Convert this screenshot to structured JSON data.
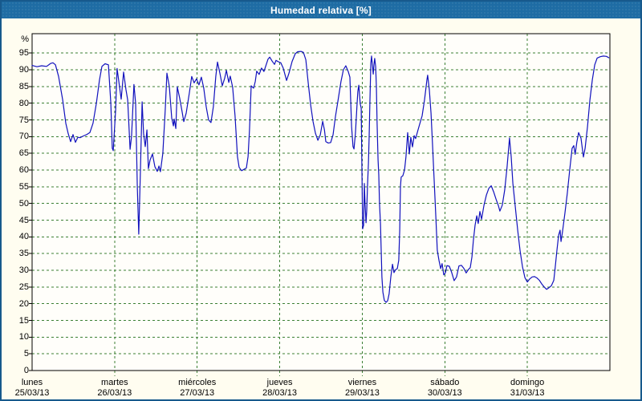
{
  "window": {
    "title": "Humedad relativa [%]"
  },
  "colors": {
    "titlebar": "#1e6ca4",
    "window_border": "#17598c",
    "background": "#fffdf0",
    "plot_background": "#fffefa",
    "grid": "#3c8034",
    "frame": "#000000",
    "line": "#1111bd",
    "title_text": "#ffffff",
    "label_text": "#000000"
  },
  "chart_data": {
    "type": "line",
    "title": "Humedad relativa [%]",
    "ylabel": "%",
    "y_unit_label": "%",
    "ylim": [
      0,
      100.8
    ],
    "y_ticks": [
      0,
      5,
      10,
      15,
      20,
      25,
      30,
      35,
      40,
      45,
      50,
      55,
      60,
      65,
      70,
      75,
      80,
      85,
      90,
      95
    ],
    "x_range_hours": [
      0,
      168
    ],
    "grid": "dashed",
    "legend": "none",
    "x_day_labels": [
      {
        "day": "lunes",
        "date": "25/03/13"
      },
      {
        "day": "martes",
        "date": "26/03/13"
      },
      {
        "day": "miércoles",
        "date": "27/03/13"
      },
      {
        "day": "jueves",
        "date": "28/03/13"
      },
      {
        "day": "viernes",
        "date": "29/03/13"
      },
      {
        "day": "sábado",
        "date": "30/03/13"
      },
      {
        "day": "domingo",
        "date": "31/03/13"
      }
    ],
    "series": [
      {
        "name": "Humedad relativa",
        "color": "#1111bd",
        "points": [
          [
            0,
            91.3
          ],
          [
            1.4,
            90.9
          ],
          [
            2.8,
            91.2
          ],
          [
            4.2,
            91.0
          ],
          [
            5.4,
            91.9
          ],
          [
            6.1,
            92.1
          ],
          [
            6.8,
            91.5
          ],
          [
            7.7,
            88
          ],
          [
            8.9,
            81
          ],
          [
            9.8,
            74
          ],
          [
            10.5,
            70.9
          ],
          [
            11.2,
            68.5
          ],
          [
            11.9,
            70.6
          ],
          [
            12.6,
            68.3
          ],
          [
            13.3,
            69.8
          ],
          [
            14,
            69.7
          ],
          [
            14.9,
            70.2
          ],
          [
            15.9,
            70.6
          ],
          [
            16.8,
            71.2
          ],
          [
            17.7,
            74
          ],
          [
            18.7,
            80
          ],
          [
            19.6,
            87
          ],
          [
            20.3,
            91
          ],
          [
            21.2,
            91.8
          ],
          [
            22.2,
            91.5
          ],
          [
            22.9,
            80
          ],
          [
            23.3,
            66.5
          ],
          [
            23.6,
            65.8
          ],
          [
            24.3,
            78
          ],
          [
            24.7,
            90.4
          ],
          [
            25.4,
            85
          ],
          [
            25.9,
            81.2
          ],
          [
            26.6,
            89.3
          ],
          [
            27.3,
            84
          ],
          [
            27.8,
            81
          ],
          [
            28.5,
            66.2
          ],
          [
            28.9,
            70
          ],
          [
            29.6,
            85.6
          ],
          [
            30.1,
            80
          ],
          [
            30.6,
            55
          ],
          [
            31.0,
            40.8
          ],
          [
            31.5,
            60
          ],
          [
            32.0,
            80.4
          ],
          [
            32.4,
            71
          ],
          [
            32.9,
            67
          ],
          [
            33.4,
            72
          ],
          [
            33.8,
            60.4
          ],
          [
            34.3,
            63
          ],
          [
            35,
            64.8
          ],
          [
            35.7,
            61
          ],
          [
            36.4,
            59.6
          ],
          [
            36.9,
            61.2
          ],
          [
            37.3,
            59.5
          ],
          [
            38,
            65
          ],
          [
            38.7,
            78
          ],
          [
            39.2,
            89
          ],
          [
            39.9,
            85
          ],
          [
            40.6,
            75.5
          ],
          [
            41.1,
            73.2
          ],
          [
            41.3,
            75.3
          ],
          [
            41.8,
            72.4
          ],
          [
            42.2,
            84.9
          ],
          [
            42.9,
            81.5
          ],
          [
            43.6,
            77.5
          ],
          [
            44.1,
            74.5
          ],
          [
            44.8,
            77
          ],
          [
            45.7,
            83
          ],
          [
            46.4,
            88
          ],
          [
            47.1,
            86.1
          ],
          [
            47.8,
            87.3
          ],
          [
            48.5,
            85.5
          ],
          [
            49.2,
            87.8
          ],
          [
            49.9,
            84.5
          ],
          [
            50.6,
            79
          ],
          [
            51.3,
            75
          ],
          [
            52.0,
            74.2
          ],
          [
            52.7,
            79
          ],
          [
            53.4,
            88
          ],
          [
            53.9,
            92.3
          ],
          [
            54.6,
            89
          ],
          [
            55.3,
            85.2
          ],
          [
            56,
            87.5
          ],
          [
            56.5,
            89.8
          ],
          [
            57.2,
            86.2
          ],
          [
            57.6,
            88.1
          ],
          [
            58.3,
            84.8
          ],
          [
            59.0,
            76.2
          ],
          [
            59.7,
            64
          ],
          [
            60.2,
            60.8
          ],
          [
            60.9,
            59.8
          ],
          [
            61.6,
            60.2
          ],
          [
            62.3,
            60.6
          ],
          [
            62.8,
            64
          ],
          [
            63.2,
            72
          ],
          [
            63.7,
            85.2
          ],
          [
            64.4,
            84.5
          ],
          [
            64.9,
            86.5
          ],
          [
            65.3,
            89.6
          ],
          [
            66.0,
            88.6
          ],
          [
            66.7,
            90.5
          ],
          [
            67.4,
            89.5
          ],
          [
            67.9,
            91
          ],
          [
            68.6,
            93.2
          ],
          [
            69.1,
            93.8
          ],
          [
            69.8,
            92.6
          ],
          [
            70.5,
            91.6
          ],
          [
            70.9,
            92.8
          ],
          [
            71.6,
            92.4
          ],
          [
            72.3,
            92.1
          ],
          [
            73.0,
            90.5
          ],
          [
            74.0,
            86.8
          ],
          [
            74.7,
            89
          ],
          [
            75.6,
            92.5
          ],
          [
            76.5,
            94.8
          ],
          [
            77.2,
            95.4
          ],
          [
            78.2,
            95.5
          ],
          [
            78.9,
            95.2
          ],
          [
            79.6,
            93
          ],
          [
            80.3,
            86
          ],
          [
            81.0,
            79.5
          ],
          [
            81.7,
            74.5
          ],
          [
            82.4,
            71
          ],
          [
            83.1,
            68.9
          ],
          [
            83.8,
            70.5
          ],
          [
            84.5,
            74.6
          ],
          [
            85.0,
            72
          ],
          [
            85.4,
            68.5
          ],
          [
            86.1,
            68.1
          ],
          [
            86.8,
            68.2
          ],
          [
            87.5,
            70.5
          ],
          [
            88.2,
            76
          ],
          [
            88.9,
            80.5
          ],
          [
            89.8,
            86.5
          ],
          [
            90.5,
            90
          ],
          [
            91.2,
            91.2
          ],
          [
            91.9,
            89.5
          ],
          [
            92.4,
            87.8
          ],
          [
            92.9,
            73
          ],
          [
            93.3,
            67
          ],
          [
            93.6,
            66.3
          ],
          [
            94.0,
            71
          ],
          [
            94.5,
            80
          ],
          [
            94.7,
            83.5
          ],
          [
            95.0,
            85.4
          ],
          [
            95.2,
            82.5
          ],
          [
            95.4,
            79.8
          ],
          [
            95.7,
            78.5
          ],
          [
            95.9,
            60
          ],
          [
            96.1,
            42.4
          ],
          [
            96.4,
            43.5
          ],
          [
            96.6,
            56
          ],
          [
            96.8,
            50
          ],
          [
            97.1,
            44.2
          ],
          [
            97.3,
            48
          ],
          [
            97.5,
            55
          ],
          [
            97.8,
            62
          ],
          [
            98.0,
            70
          ],
          [
            98.2,
            80
          ],
          [
            98.5,
            92
          ],
          [
            98.7,
            94.1
          ],
          [
            99.2,
            88.7
          ],
          [
            99.4,
            91.5
          ],
          [
            99.6,
            93.4
          ],
          [
            99.9,
            91
          ],
          [
            100.1,
            85
          ],
          [
            100.3,
            74
          ],
          [
            100.6,
            63
          ],
          [
            100.8,
            58.5
          ],
          [
            101.0,
            50
          ],
          [
            101.3,
            44
          ],
          [
            101.5,
            36
          ],
          [
            101.7,
            28
          ],
          [
            102.0,
            23.5
          ],
          [
            102.4,
            21
          ],
          [
            102.9,
            20.4
          ],
          [
            103.4,
            20.9
          ],
          [
            103.8,
            23
          ],
          [
            104.3,
            28
          ],
          [
            104.8,
            31.8
          ],
          [
            105.2,
            29.3
          ],
          [
            105.7,
            30.2
          ],
          [
            106.2,
            30.5
          ],
          [
            106.6,
            33
          ],
          [
            106.9,
            42
          ],
          [
            107.1,
            55
          ],
          [
            107.3,
            57.9
          ],
          [
            107.8,
            58.3
          ],
          [
            108.3,
            60
          ],
          [
            108.7,
            64
          ],
          [
            109.2,
            71.2
          ],
          [
            109.7,
            64.8
          ],
          [
            110.1,
            69.8
          ],
          [
            110.6,
            66.9
          ],
          [
            111.1,
            70.3
          ],
          [
            111.5,
            69.4
          ],
          [
            112.2,
            72
          ],
          [
            112.9,
            74.5
          ],
          [
            113.4,
            76.2
          ],
          [
            114.1,
            81
          ],
          [
            114.8,
            87
          ],
          [
            115.0,
            88.4
          ],
          [
            115.5,
            84
          ],
          [
            116.0,
            77
          ],
          [
            116.4,
            68
          ],
          [
            116.9,
            57
          ],
          [
            117.4,
            46
          ],
          [
            117.8,
            36
          ],
          [
            118.3,
            33
          ],
          [
            118.8,
            30.5
          ],
          [
            119.2,
            32
          ],
          [
            119.7,
            28.6
          ],
          [
            120.2,
            29.3
          ],
          [
            120.6,
            31.4
          ],
          [
            121.3,
            31.2
          ],
          [
            122.0,
            29.3
          ],
          [
            122.7,
            26.9
          ],
          [
            123.4,
            28
          ],
          [
            124.1,
            31.3
          ],
          [
            124.8,
            31.5
          ],
          [
            125.5,
            30.6
          ],
          [
            126.2,
            29.2
          ],
          [
            126.9,
            30.3
          ],
          [
            127.4,
            30.8
          ],
          [
            127.9,
            34
          ],
          [
            128.3,
            39
          ],
          [
            128.8,
            43.5
          ],
          [
            129.3,
            46.3
          ],
          [
            129.7,
            44
          ],
          [
            130.2,
            47.6
          ],
          [
            130.7,
            45.3
          ],
          [
            131.4,
            49.5
          ],
          [
            132.1,
            52.5
          ],
          [
            132.8,
            54.5
          ],
          [
            133.5,
            55.3
          ],
          [
            134.2,
            53.5
          ],
          [
            134.9,
            51.3
          ],
          [
            135.6,
            49.3
          ],
          [
            136.0,
            47.7
          ],
          [
            136.7,
            49.5
          ],
          [
            137.4,
            54
          ],
          [
            138.1,
            61
          ],
          [
            138.8,
            69.6
          ],
          [
            139.3,
            64
          ],
          [
            139.8,
            56
          ],
          [
            140.5,
            49
          ],
          [
            141.2,
            42
          ],
          [
            141.9,
            35.8
          ],
          [
            142.6,
            31
          ],
          [
            143.3,
            27.8
          ],
          [
            144.0,
            26.5
          ],
          [
            144.7,
            27.4
          ],
          [
            145.4,
            28
          ],
          [
            146.1,
            28.1
          ],
          [
            146.8,
            27.7
          ],
          [
            147.5,
            27
          ],
          [
            148.2,
            25.9
          ],
          [
            148.9,
            25
          ],
          [
            149.6,
            24.3
          ],
          [
            150.3,
            24.8
          ],
          [
            151.0,
            25.4
          ],
          [
            151.7,
            27
          ],
          [
            152.1,
            31
          ],
          [
            152.6,
            36
          ],
          [
            153.1,
            40.5
          ],
          [
            153.5,
            42
          ],
          [
            153.8,
            38.6
          ],
          [
            154.2,
            41.5
          ],
          [
            154.9,
            47
          ],
          [
            155.6,
            53
          ],
          [
            156.3,
            60
          ],
          [
            157.0,
            66.5
          ],
          [
            157.5,
            67.3
          ],
          [
            157.9,
            64.7
          ],
          [
            158.4,
            68.5
          ],
          [
            158.9,
            71.2
          ],
          [
            159.6,
            69.5
          ],
          [
            160.3,
            63.9
          ],
          [
            160.8,
            66.5
          ],
          [
            161.5,
            73
          ],
          [
            162.2,
            81
          ],
          [
            162.9,
            87
          ],
          [
            163.6,
            91.5
          ],
          [
            164.3,
            93.5
          ],
          [
            165.2,
            93.9
          ],
          [
            166.1,
            94.1
          ],
          [
            167.0,
            94.0
          ],
          [
            167.7,
            93.6
          ]
        ]
      }
    ]
  }
}
